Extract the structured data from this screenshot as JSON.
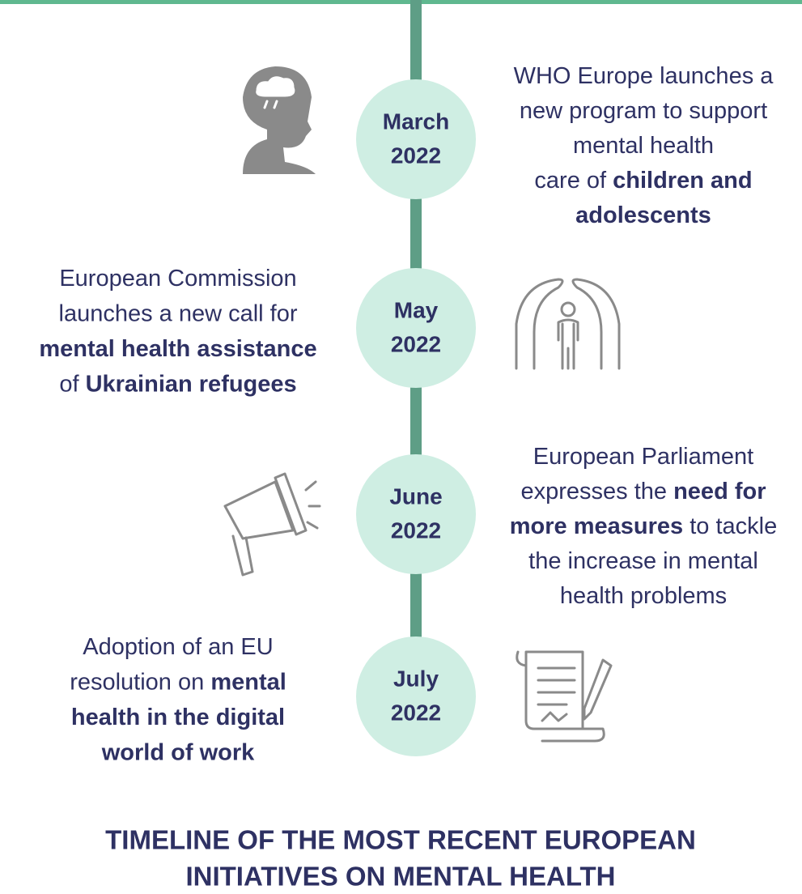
{
  "events": [
    {
      "date": [
        "March",
        "2022"
      ],
      "side": "right",
      "lines": [
        [
          {
            "text": "WHO Europe launches a",
            "bold": false
          }
        ],
        [
          {
            "text": "new program to support",
            "bold": false
          }
        ],
        [
          {
            "text": "mental health",
            "bold": false
          }
        ],
        [
          {
            "text": "care of ",
            "bold": false
          },
          {
            "text": "children and",
            "bold": true
          }
        ],
        [
          {
            "text": "adolescents",
            "bold": true
          }
        ]
      ]
    },
    {
      "date": [
        "May",
        "2022"
      ],
      "side": "left",
      "lines": [
        [
          {
            "text": "European Commission",
            "bold": false
          }
        ],
        [
          {
            "text": "launches a new call for",
            "bold": false
          }
        ],
        [
          {
            "text": "mental health assistance",
            "bold": true
          }
        ],
        [
          {
            "text": "of ",
            "bold": false
          },
          {
            "text": "Ukrainian refugees",
            "bold": true
          }
        ]
      ]
    },
    {
      "date": [
        "June",
        "2022"
      ],
      "side": "right",
      "lines": [
        [
          {
            "text": "European Parliament",
            "bold": false
          }
        ],
        [
          {
            "text": "expresses the ",
            "bold": false
          },
          {
            "text": "need for",
            "bold": true
          }
        ],
        [
          {
            "text": "more measures",
            "bold": true
          },
          {
            "text": " to tackle",
            "bold": false
          }
        ],
        [
          {
            "text": "the increase in mental",
            "bold": false
          }
        ],
        [
          {
            "text": "health problems",
            "bold": false
          }
        ]
      ]
    },
    {
      "date": [
        "July",
        "2022"
      ],
      "side": "left",
      "lines": [
        [
          {
            "text": "Adoption of an EU",
            "bold": false
          }
        ],
        [
          {
            "text": "resolution on ",
            "bold": false
          },
          {
            "text": "mental",
            "bold": true
          }
        ],
        [
          {
            "text": "health in the digital",
            "bold": true
          }
        ],
        [
          {
            "text": "world of work",
            "bold": true
          }
        ]
      ]
    }
  ],
  "title": [
    "TIMELINE OF THE MOST RECENT EUROPEAN",
    "INITIATIVES ON MENTAL HEALTH"
  ]
}
